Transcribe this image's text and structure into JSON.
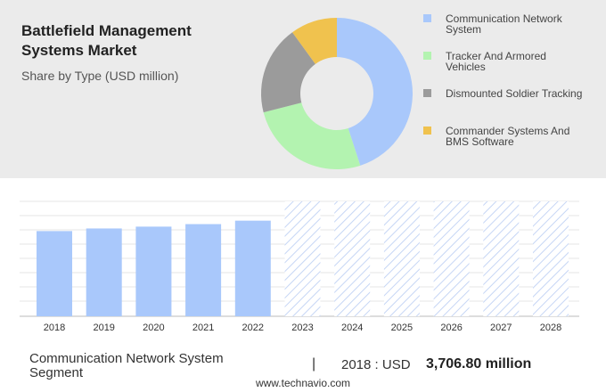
{
  "chart_data": [
    {
      "type": "pie",
      "title": "Battlefield Management Systems Market",
      "subtitle": "Share by Type (USD million)",
      "categories": [
        "Communication Network System",
        "Tracker And Armored Vehicles",
        "Dismounted Soldier Tracking",
        "Commander Systems And BMS Software"
      ],
      "values": [
        45,
        26,
        19,
        10
      ],
      "colors": [
        "#a9c8fb",
        "#b3f3b0",
        "#9b9b9b",
        "#f0c24e"
      ]
    },
    {
      "type": "bar",
      "categories": [
        "2018",
        "2019",
        "2020",
        "2021",
        "2022",
        "2023",
        "2024",
        "2025",
        "2026",
        "2027",
        "2028"
      ],
      "values": [
        3706.8,
        3820,
        3900,
        4010,
        4160,
        null,
        null,
        null,
        null,
        null,
        null
      ],
      "color": "#a9c8fb",
      "ylim": [
        0,
        5000
      ]
    }
  ],
  "footer": {
    "segment": "Communication Network System Segment",
    "year_label": "2018 : USD",
    "value_label": "3,706.80 million",
    "source": "www.technavio.com"
  }
}
